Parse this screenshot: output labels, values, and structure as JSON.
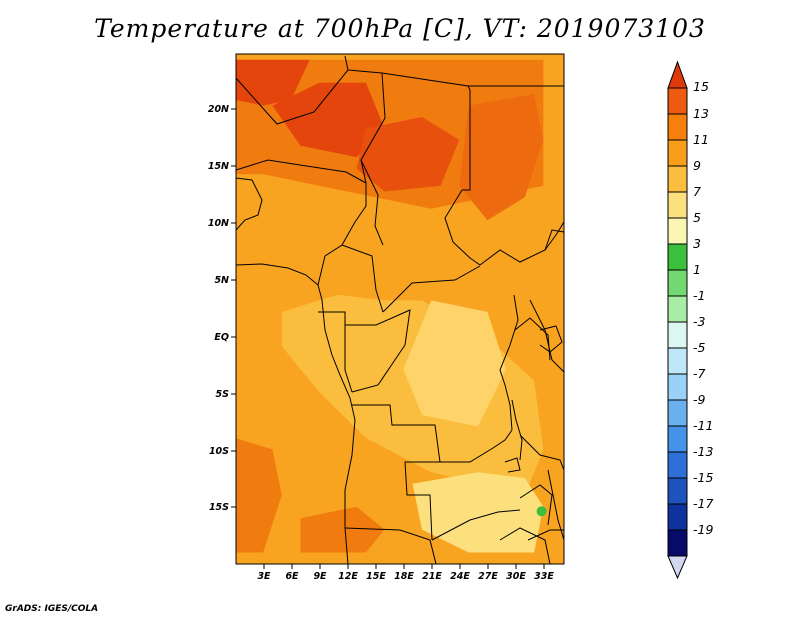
{
  "title": "Temperature at 700hPa [C], VT: 2019073103",
  "credit": "GrADS: IGES/COLA",
  "map": {
    "lon_ticks": [
      "3E",
      "6E",
      "9E",
      "12E",
      "15E",
      "18E",
      "21E",
      "24E",
      "27E",
      "30E",
      "33E"
    ],
    "lat_ticks": [
      "20N",
      "15N",
      "10N",
      "5N",
      "EQ",
      "5S",
      "10S",
      "15S"
    ]
  },
  "colorbar": {
    "labels": [
      "15",
      "13",
      "11",
      "9",
      "7",
      "5",
      "3",
      "1",
      "-1",
      "-3",
      "-5",
      "-7",
      "-9",
      "-11",
      "-13",
      "-15",
      "-17",
      "-19"
    ],
    "colors": [
      "#dd3a0c",
      "#ee5a0f",
      "#f6800b",
      "#f79f1a",
      "#fbbd3e",
      "#fde07e",
      "#fcf6b4",
      "#3cbf3c",
      "#72d972",
      "#a8eca6",
      "#dcf7f1",
      "#bfe7fa",
      "#9ad1f6",
      "#6aafee",
      "#4592e9",
      "#2f70d8",
      "#1e52bc",
      "#0e339c",
      "#080a6a",
      "#d2d7f2"
    ]
  },
  "fields": {
    "bg": "#f8a421",
    "zones": [
      {
        "c": "#f07c10",
        "pts": [
          [
            3,
            14
          ],
          [
            21,
            11
          ],
          [
            33,
            13
          ],
          [
            33,
            24
          ],
          [
            0,
            24
          ],
          [
            0,
            14
          ]
        ]
      },
      {
        "c": "#e4450c",
        "pts": [
          [
            0,
            24
          ],
          [
            8,
            24
          ],
          [
            6,
            20.5
          ],
          [
            3,
            20
          ],
          [
            0,
            20.5
          ]
        ]
      },
      {
        "c": "#e4450c",
        "pts": [
          [
            4,
            20
          ],
          [
            9,
            22
          ],
          [
            14,
            22
          ],
          [
            16,
            18
          ],
          [
            13,
            15.5
          ],
          [
            7,
            16.5
          ]
        ]
      },
      {
        "c": "#e8500e",
        "pts": [
          [
            14,
            18
          ],
          [
            20,
            19
          ],
          [
            24,
            17
          ],
          [
            22,
            13
          ],
          [
            16,
            12.5
          ],
          [
            13,
            14.5
          ]
        ]
      },
      {
        "c": "#ee6a0f",
        "pts": [
          [
            25,
            20
          ],
          [
            32,
            21
          ],
          [
            33,
            17
          ],
          [
            31,
            12
          ],
          [
            27,
            10
          ],
          [
            24,
            13
          ]
        ]
      },
      {
        "c": "#fbbd3e",
        "pts": [
          [
            5,
            2
          ],
          [
            11,
            3.5
          ],
          [
            16,
            3
          ],
          [
            20,
            3
          ],
          [
            28,
            -1
          ],
          [
            32,
            -4
          ],
          [
            33,
            -10
          ],
          [
            31,
            -14
          ],
          [
            26,
            -13
          ],
          [
            21,
            -12
          ],
          [
            14,
            -9
          ],
          [
            9,
            -5
          ],
          [
            5,
            -1
          ]
        ]
      },
      {
        "c": "#fdd36a",
        "pts": [
          [
            21,
            3
          ],
          [
            27,
            2
          ],
          [
            29,
            -3
          ],
          [
            26,
            -8
          ],
          [
            20,
            -7
          ],
          [
            18,
            -3
          ]
        ]
      },
      {
        "c": "#fde07e",
        "pts": [
          [
            19,
            -13
          ],
          [
            26,
            -12
          ],
          [
            31,
            -12.5
          ],
          [
            33,
            -15
          ],
          [
            32,
            -19
          ],
          [
            25,
            -19
          ],
          [
            20,
            -17
          ]
        ]
      },
      {
        "c": "#f07c10",
        "pts": [
          [
            0,
            -9
          ],
          [
            4,
            -10
          ],
          [
            5,
            -14
          ],
          [
            3,
            -19
          ],
          [
            0,
            -19
          ]
        ]
      },
      {
        "c": "#f07c10",
        "pts": [
          [
            7,
            -16
          ],
          [
            13,
            -15
          ],
          [
            16,
            -17
          ],
          [
            14,
            -19
          ],
          [
            7,
            -19
          ]
        ]
      }
    ],
    "blobs": [
      {
        "c": "#3cbf3c",
        "lon": 32.8,
        "lat": -15.4,
        "r": 5
      }
    ]
  }
}
